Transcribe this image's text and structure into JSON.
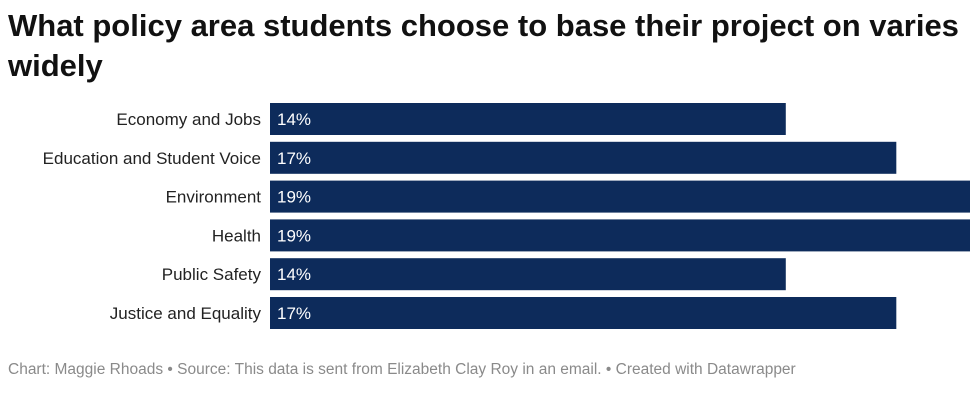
{
  "title": "What policy area students choose to base their project on varies widely",
  "footer": {
    "chart_by": "Chart: Maggie Rhoads",
    "source": "Source: This data is sent from Elizabeth Clay Roy in an email.",
    "created": "Created with Datawrapper",
    "separator": "•"
  },
  "colors": {
    "bar": "#0d2b5b",
    "bar_text": "#ffffff",
    "label": "#222222",
    "footer": "#8a8a8a"
  },
  "chart_data": {
    "type": "bar",
    "orientation": "horizontal",
    "categories": [
      "Economy and Jobs",
      "Education and Student Voice",
      "Environment",
      "Health",
      "Public Safety",
      "Justice and Equality"
    ],
    "values": [
      14,
      17,
      19,
      19,
      14,
      17
    ],
    "value_labels": [
      "14%",
      "17%",
      "19%",
      "19%",
      "14%",
      "17%"
    ],
    "unit": "%",
    "xlim": [
      0,
      19
    ],
    "grid": false,
    "legend": "none"
  }
}
